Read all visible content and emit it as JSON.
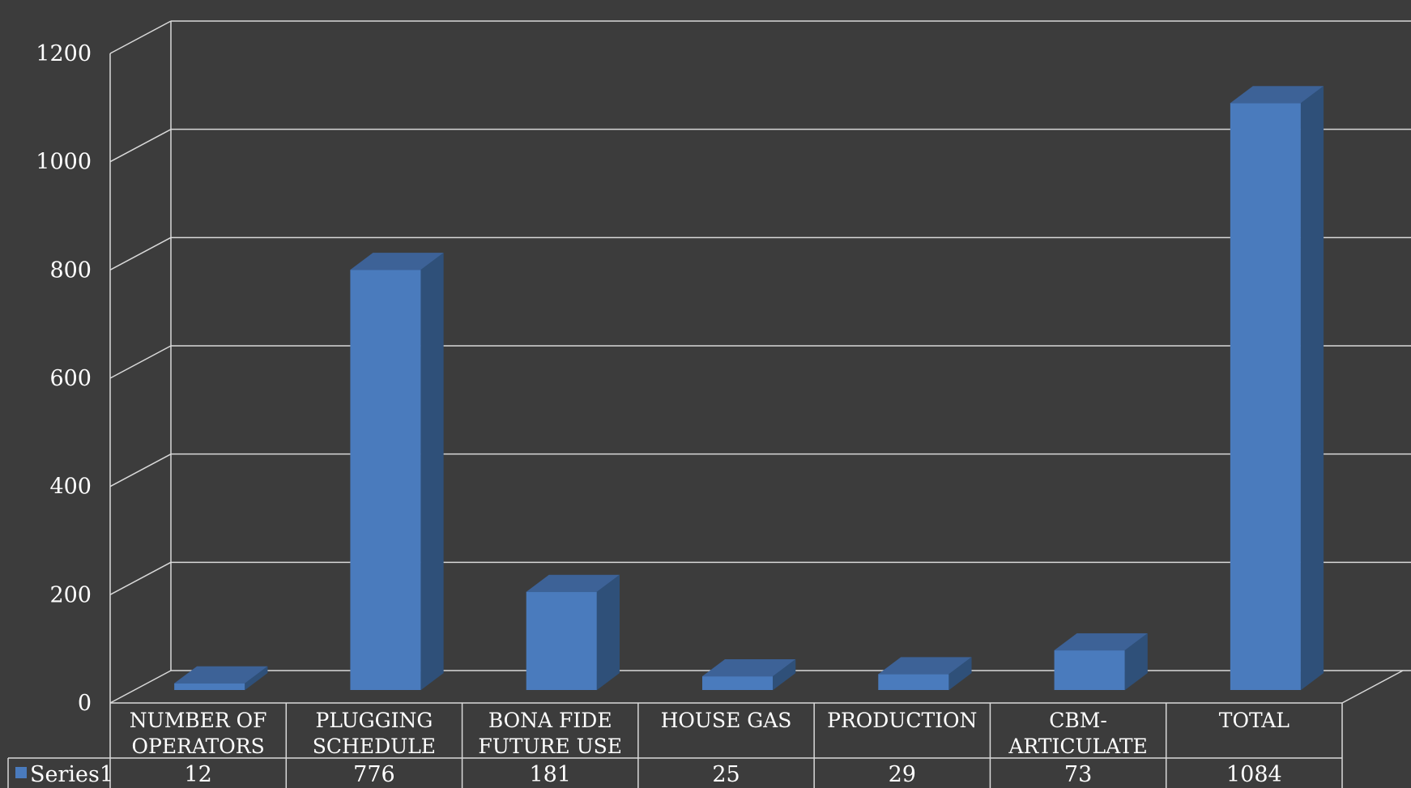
{
  "colors": {
    "background": "#3c3c3c",
    "grid": "#d9d9d9",
    "bar_front": "#4a7bbd",
    "bar_top": "#3d6297",
    "bar_side": "#2f5079",
    "text": "#ffffff"
  },
  "chart_data": {
    "type": "bar",
    "style": "3d-column",
    "title": "",
    "xlabel": "",
    "ylabel": "",
    "ylim": [
      0,
      1200
    ],
    "yticks": [
      0,
      200,
      400,
      600,
      800,
      1000,
      1200
    ],
    "ytick_labels": [
      "0",
      "200",
      "400",
      "600",
      "800",
      "1000",
      "1200"
    ],
    "grid": true,
    "legend": "data-table",
    "categories": [
      [
        "NUMBER OF",
        "OPERATORS"
      ],
      [
        "PLUGGING",
        "SCHEDULE"
      ],
      [
        "BONA FIDE",
        "FUTURE USE"
      ],
      [
        "HOUSE GAS"
      ],
      [
        "PRODUCTION"
      ],
      [
        "CBM-",
        "ARTICULATE"
      ],
      [
        "TOTAL"
      ]
    ],
    "series": [
      {
        "name": "Series1",
        "values": [
          12,
          776,
          181,
          25,
          29,
          73,
          1084
        ],
        "value_labels": [
          "12",
          "776",
          "181",
          "25",
          "29",
          "73",
          "1084"
        ]
      }
    ]
  }
}
